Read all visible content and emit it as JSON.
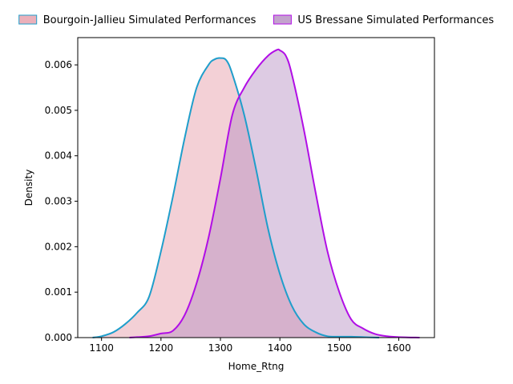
{
  "chart_data": {
    "type": "area",
    "title": "",
    "xlabel": "Home_Rtng",
    "ylabel": "Density",
    "xlim": [
      1060,
      1660
    ],
    "ylim": [
      0,
      0.0066
    ],
    "x_ticks": [
      1100,
      1200,
      1300,
      1400,
      1500,
      1600
    ],
    "y_ticks": [
      0.0,
      0.001,
      0.002,
      0.003,
      0.004,
      0.005,
      0.006
    ],
    "x_tick_labels": [
      "1100",
      "1200",
      "1300",
      "1400",
      "1500",
      "1600"
    ],
    "y_tick_labels": [
      "0.000",
      "0.001",
      "0.002",
      "0.003",
      "0.004",
      "0.005",
      "0.006"
    ],
    "grid": false,
    "legend_position": "top",
    "series": [
      {
        "name": "Bourgoin-Jallieu Simulated Performances",
        "line_color": "#1f9ecb",
        "fill_color": "#e8a2ae",
        "fill_opacity": 0.5,
        "x": [
          1085,
          1100,
          1120,
          1140,
          1160,
          1180,
          1200,
          1220,
          1240,
          1260,
          1280,
          1290,
          1300,
          1310,
          1320,
          1340,
          1360,
          1380,
          1400,
          1420,
          1440,
          1460,
          1480,
          1500,
          1520,
          1540,
          1567
        ],
        "y": [
          0.0,
          3e-05,
          0.00012,
          0.0003,
          0.00055,
          0.0009,
          0.0019,
          0.0031,
          0.0044,
          0.0055,
          0.006,
          0.00612,
          0.00615,
          0.0061,
          0.0058,
          0.0049,
          0.0037,
          0.0024,
          0.0014,
          0.0007,
          0.0003,
          0.00012,
          3e-05,
          2e-05,
          2e-05,
          1e-05,
          0.0
        ]
      },
      {
        "name": "US Bressane Simulated Performances",
        "line_color": "#b10ee6",
        "fill_color": "#b48cc0",
        "fill_opacity": 0.45,
        "x": [
          1147,
          1160,
          1180,
          1200,
          1220,
          1240,
          1260,
          1280,
          1300,
          1320,
          1340,
          1360,
          1380,
          1395,
          1400,
          1410,
          1420,
          1440,
          1460,
          1480,
          1500,
          1520,
          1540,
          1560,
          1580,
          1600,
          1635
        ],
        "y": [
          0.0,
          1e-05,
          3e-05,
          9e-05,
          0.00015,
          0.0005,
          0.0012,
          0.0022,
          0.0035,
          0.0049,
          0.0055,
          0.0059,
          0.0062,
          0.00633,
          0.00632,
          0.0062,
          0.0058,
          0.0046,
          0.0032,
          0.0019,
          0.001,
          0.0004,
          0.0002,
          8e-05,
          3e-05,
          1e-05,
          0.0
        ]
      }
    ]
  }
}
